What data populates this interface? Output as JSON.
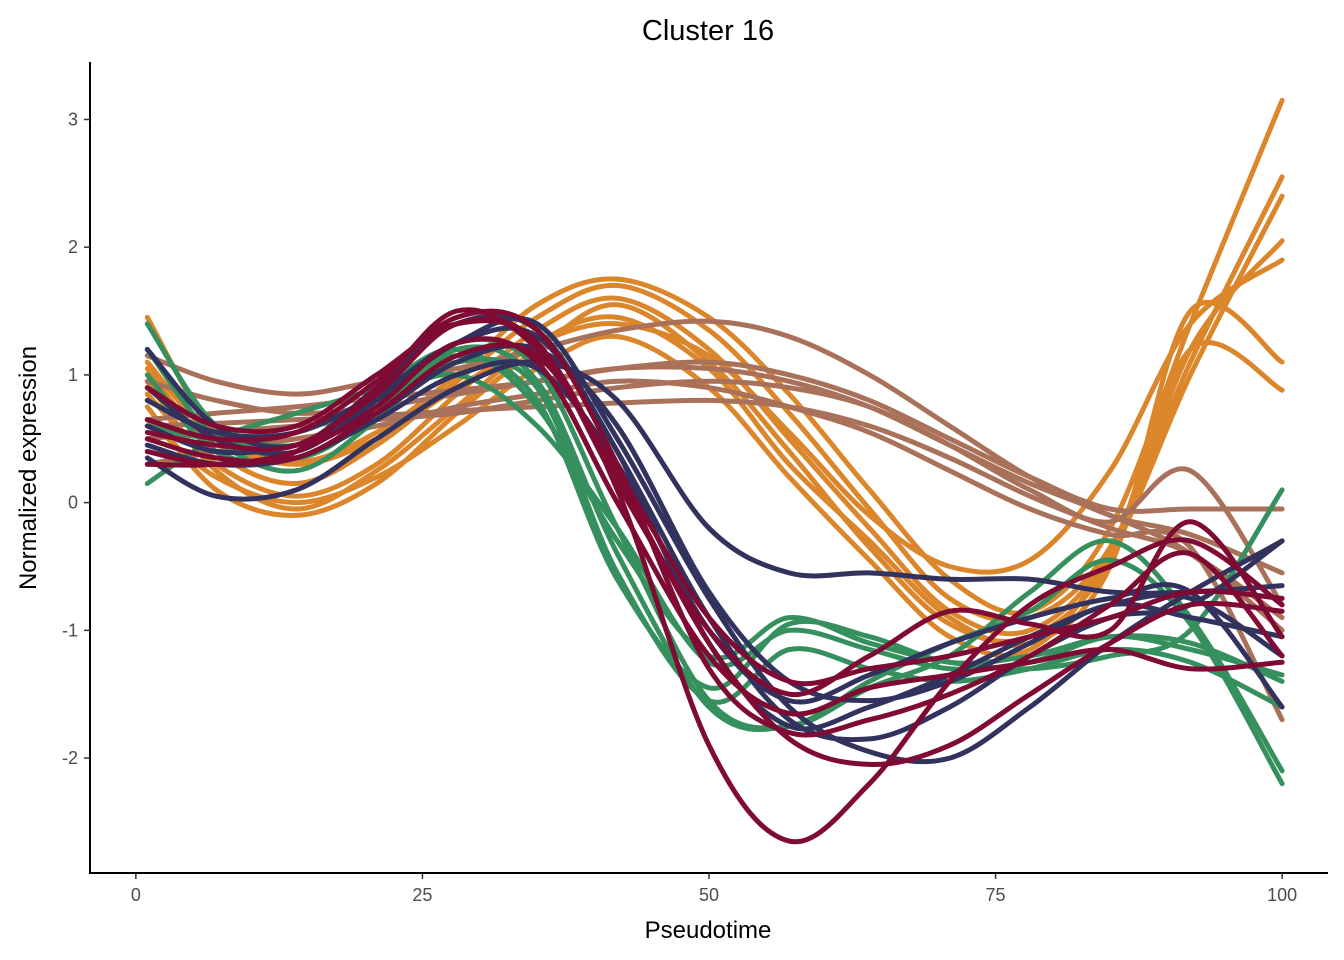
{
  "chart_data": {
    "type": "line",
    "title": "Cluster 16",
    "xlabel": "Pseudotime",
    "ylabel": "Normalized expression",
    "xlim": [
      -4,
      104
    ],
    "ylim": [
      -2.9,
      3.45
    ],
    "x_ticks": [
      0,
      25,
      50,
      75,
      100
    ],
    "x_tick_labels": [
      "0",
      "25",
      "50",
      "75",
      "100"
    ],
    "y_ticks": [
      -2,
      -1,
      0,
      1,
      2,
      3
    ],
    "y_tick_labels": [
      "-2",
      "-1",
      "0",
      "1",
      "2",
      "3"
    ],
    "grid": false,
    "legend": "none",
    "colors": {
      "orange": "#DC862C",
      "tan": "#A9715A",
      "green": "#35905E",
      "navy": "#32325E",
      "crimson": "#7F0A33"
    },
    "x": [
      1,
      7,
      14,
      21,
      28,
      35,
      42,
      50,
      57,
      64,
      71,
      78,
      85,
      92,
      100
    ],
    "series": [
      {
        "color": "orange",
        "values": [
          1.45,
          0.55,
          0.32,
          0.55,
          1.0,
          1.55,
          1.75,
          1.45,
          0.85,
          0.1,
          -0.6,
          -0.85,
          -0.2,
          1.4,
          3.15
        ]
      },
      {
        "color": "orange",
        "values": [
          1.05,
          0.4,
          0.15,
          0.45,
          0.95,
          1.45,
          1.7,
          1.35,
          0.7,
          -0.05,
          -0.75,
          -0.9,
          -0.35,
          1.1,
          2.55
        ]
      },
      {
        "color": "orange",
        "values": [
          0.85,
          0.3,
          0.05,
          0.3,
          0.85,
          1.35,
          1.6,
          1.2,
          0.5,
          -0.2,
          -0.85,
          -1.0,
          -0.4,
          1.0,
          2.4
        ]
      },
      {
        "color": "orange",
        "values": [
          0.75,
          0.1,
          -0.1,
          0.15,
          0.7,
          1.2,
          1.55,
          1.1,
          0.4,
          -0.35,
          -0.95,
          -1.05,
          -0.45,
          1.2,
          2.05
        ]
      },
      {
        "color": "orange",
        "values": [
          0.95,
          0.25,
          -0.05,
          0.25,
          0.75,
          1.25,
          1.45,
          1.05,
          0.3,
          -0.3,
          -0.9,
          -1.1,
          -0.5,
          1.5,
          1.1
        ]
      },
      {
        "color": "orange",
        "values": [
          0.65,
          0.2,
          0.0,
          0.2,
          0.6,
          1.05,
          1.3,
          0.9,
          0.2,
          -0.45,
          -1.05,
          -1.15,
          -0.4,
          1.2,
          0.88
        ]
      },
      {
        "color": "orange",
        "values": [
          1.1,
          0.5,
          0.3,
          0.5,
          0.9,
          1.25,
          1.4,
          1.15,
          0.55,
          -0.1,
          -0.5,
          -0.45,
          0.25,
          1.4,
          1.9
        ]
      },
      {
        "color": "tan",
        "values": [
          1.15,
          0.95,
          0.85,
          0.95,
          1.05,
          1.2,
          1.35,
          1.42,
          1.3,
          1.0,
          0.6,
          0.2,
          -0.1,
          -0.25,
          -0.55
        ]
      },
      {
        "color": "tan",
        "values": [
          0.65,
          0.7,
          0.75,
          0.82,
          0.88,
          0.95,
          1.05,
          1.1,
          1.0,
          0.8,
          0.5,
          0.2,
          -0.05,
          -0.05,
          -0.05
        ]
      },
      {
        "color": "tan",
        "values": [
          0.5,
          0.55,
          0.6,
          0.65,
          0.7,
          0.8,
          0.9,
          0.95,
          0.9,
          0.75,
          0.45,
          0.1,
          -0.15,
          0.25,
          -0.8
        ]
      },
      {
        "color": "tan",
        "values": [
          0.3,
          0.4,
          0.5,
          0.6,
          0.75,
          0.85,
          0.95,
          0.9,
          0.75,
          0.55,
          0.25,
          -0.05,
          -0.25,
          -0.35,
          -1.7
        ]
      },
      {
        "color": "tan",
        "values": [
          0.6,
          0.62,
          0.65,
          0.68,
          0.72,
          0.75,
          0.78,
          0.8,
          0.75,
          0.6,
          0.35,
          0.05,
          -0.2,
          -0.4,
          -0.9
        ]
      },
      {
        "color": "tan",
        "values": [
          0.95,
          0.8,
          0.7,
          0.75,
          0.85,
          0.95,
          1.05,
          1.05,
          0.95,
          0.75,
          0.45,
          0.15,
          -0.1,
          -0.4,
          -1.0
        ]
      },
      {
        "color": "green",
        "values": [
          1.4,
          0.6,
          0.35,
          0.7,
          1.25,
          1.05,
          -0.2,
          -1.55,
          -1.75,
          -1.45,
          -1.2,
          -0.7,
          -0.3,
          -0.9,
          -2.1
        ]
      },
      {
        "color": "green",
        "values": [
          1.2,
          0.5,
          0.25,
          0.65,
          1.2,
          0.95,
          -0.4,
          -1.6,
          -1.75,
          -1.4,
          -1.1,
          -0.85,
          -0.45,
          -0.95,
          -2.2
        ]
      },
      {
        "color": "green",
        "values": [
          0.8,
          0.55,
          0.45,
          0.75,
          1.15,
          0.8,
          -0.6,
          -1.45,
          -0.95,
          -1.05,
          -1.25,
          -1.2,
          -1.05,
          -1.1,
          -1.4
        ]
      },
      {
        "color": "green",
        "values": [
          0.15,
          0.5,
          0.7,
          0.9,
          1.2,
          0.75,
          -0.3,
          -1.2,
          -0.9,
          -1.1,
          -1.25,
          -1.3,
          -1.2,
          -1.0,
          0.1
        ]
      },
      {
        "color": "green",
        "values": [
          1.0,
          0.4,
          0.35,
          0.7,
          1.1,
          0.9,
          -0.55,
          -1.55,
          -1.15,
          -1.3,
          -1.4,
          -1.3,
          -1.15,
          -1.25,
          -1.6
        ]
      },
      {
        "color": "green",
        "values": [
          0.6,
          0.5,
          0.55,
          0.8,
          1.0,
          0.6,
          -0.2,
          -1.25,
          -1.0,
          -1.15,
          -1.3,
          -1.25,
          -1.05,
          -1.15,
          -1.35
        ]
      },
      {
        "color": "navy",
        "values": [
          0.35,
          0.05,
          0.1,
          0.5,
          0.9,
          1.1,
          0.8,
          -0.2,
          -0.55,
          -0.55,
          -0.6,
          -0.6,
          -0.7,
          -0.7,
          -0.65
        ]
      },
      {
        "color": "navy",
        "values": [
          1.2,
          0.6,
          0.45,
          0.9,
          1.4,
          1.35,
          0.4,
          -0.9,
          -1.7,
          -1.85,
          -1.6,
          -1.2,
          -0.9,
          -0.8,
          -0.3
        ]
      },
      {
        "color": "navy",
        "values": [
          0.9,
          0.5,
          0.4,
          0.8,
          1.25,
          1.4,
          0.5,
          -0.75,
          -1.6,
          -1.95,
          -2.0,
          -1.6,
          -1.1,
          -0.7,
          -0.3
        ]
      },
      {
        "color": "navy",
        "values": [
          0.6,
          0.4,
          0.45,
          0.7,
          1.1,
          1.2,
          0.6,
          -0.7,
          -1.4,
          -1.55,
          -1.4,
          -1.1,
          -0.8,
          -0.9,
          -1.05
        ]
      },
      {
        "color": "navy",
        "values": [
          0.45,
          0.3,
          0.35,
          0.65,
          1.0,
          1.05,
          0.3,
          -1.0,
          -1.55,
          -1.35,
          -1.1,
          -0.9,
          -0.75,
          -0.7,
          -1.6
        ]
      },
      {
        "color": "navy",
        "values": [
          0.8,
          0.55,
          0.55,
          0.85,
          1.25,
          1.3,
          0.4,
          -1.1,
          -1.75,
          -1.6,
          -1.35,
          -1.05,
          -0.8,
          -0.75,
          -1.2
        ]
      },
      {
        "color": "crimson",
        "values": [
          0.55,
          0.45,
          0.45,
          0.85,
          1.4,
          1.25,
          0.1,
          -1.9,
          -2.65,
          -2.2,
          -1.4,
          -0.8,
          -0.5,
          -0.3,
          -0.8
        ]
      },
      {
        "color": "crimson",
        "values": [
          0.4,
          0.3,
          0.4,
          0.9,
          1.5,
          1.2,
          0.2,
          -1.1,
          -1.85,
          -2.05,
          -1.9,
          -1.5,
          -1.1,
          -0.8,
          -0.85
        ]
      },
      {
        "color": "crimson",
        "values": [
          0.65,
          0.5,
          0.55,
          0.95,
          1.45,
          1.35,
          0.3,
          -1.3,
          -1.8,
          -1.7,
          -1.5,
          -1.2,
          -0.8,
          -0.4,
          -1.2
        ]
      },
      {
        "color": "crimson",
        "values": [
          0.3,
          0.3,
          0.4,
          0.75,
          1.25,
          1.1,
          0.0,
          -1.2,
          -1.65,
          -1.45,
          -1.35,
          -1.25,
          -1.15,
          -1.3,
          -1.25
        ]
      },
      {
        "color": "crimson",
        "values": [
          0.9,
          0.6,
          0.6,
          1.0,
          1.4,
          1.25,
          0.15,
          -1.0,
          -1.5,
          -1.2,
          -0.85,
          -0.95,
          -1.0,
          -0.15,
          -1.05
        ]
      },
      {
        "color": "crimson",
        "values": [
          0.5,
          0.35,
          0.35,
          0.7,
          1.15,
          1.15,
          0.25,
          -0.9,
          -1.4,
          -1.3,
          -1.2,
          -1.05,
          -0.9,
          -0.7,
          -0.75
        ]
      }
    ]
  }
}
